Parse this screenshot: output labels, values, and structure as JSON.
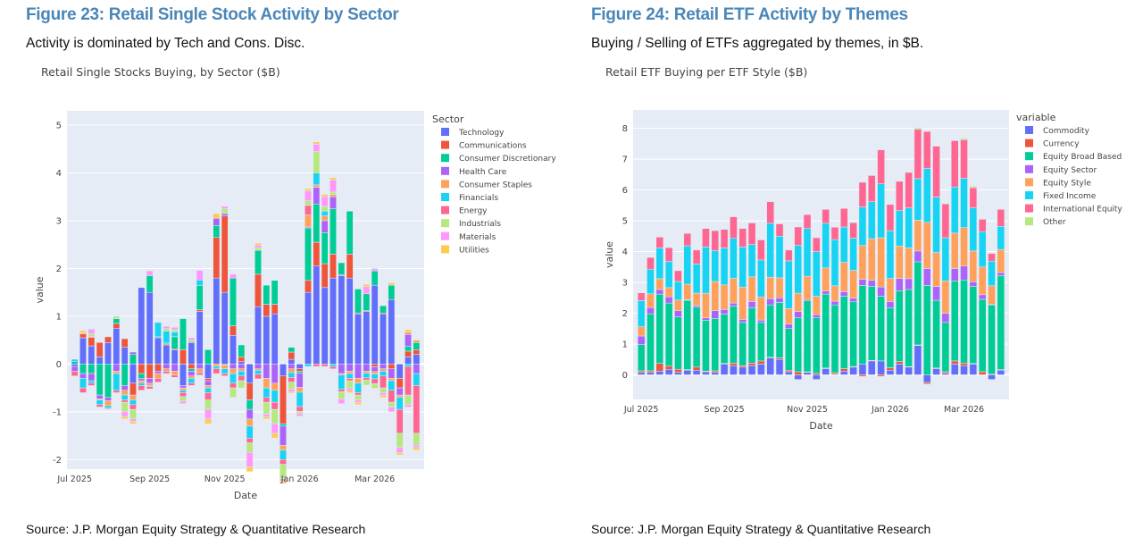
{
  "left": {
    "figure_title": "Figure 23: Retail Single Stock Activity by Sector",
    "subtitle": "Activity is dominated by Tech and Cons. Disc.",
    "source": "Source: J.P. Morgan Equity Strategy & Quantitative Research"
  },
  "right": {
    "figure_title": "Figure 24: Retail ETF Activity by Themes",
    "subtitle": "Buying / Selling of ETFs aggregated by themes, in $B.",
    "source": "Source: J.P. Morgan Equity Strategy & Quantitative Research"
  },
  "chart_data": [
    {
      "type": "bar",
      "stacked": true,
      "title": "Retail Single Stocks Buying, by Sector ($B)",
      "xlabel": "Date",
      "ylabel": "value",
      "ylim": [
        -2.2,
        5.3
      ],
      "yticks": [
        -2,
        -1,
        0,
        1,
        2,
        3,
        4,
        5
      ],
      "xticks": [
        "Jul 2025",
        "Sep 2025",
        "Nov 2025",
        "Jan 2026",
        "Mar 2026"
      ],
      "xtick_index": [
        0,
        9,
        18,
        27,
        36
      ],
      "grid": true,
      "legend_title": "Sector",
      "legend_position": "right",
      "categories_count": 42,
      "series": [
        {
          "name": "Technology",
          "color": "#636efa",
          "values": [
            -0.05,
            0.55,
            0.38,
            0.15,
            0.45,
            0.75,
            0.35,
            -0.4,
            1.6,
            1.5,
            0.55,
            0.4,
            0.3,
            -0.45,
            0.45,
            1.1,
            -0.3,
            1.8,
            1.5,
            0.6,
            0.05,
            -0.4,
            1.2,
            1.0,
            1.05,
            -0.25,
            0.1,
            -0.1,
            1.5,
            2.05,
            1.6,
            1.8,
            1.85,
            1.8,
            1.05,
            1.1,
            1.65,
            1.05,
            1.35,
            -0.3,
            0.15,
            0.2
          ]
        },
        {
          "name": "Communications",
          "color": "#ef553b",
          "values": [
            0.0,
            0.08,
            0.18,
            0.3,
            0.12,
            0.1,
            0.18,
            -0.25,
            -0.2,
            -0.3,
            -0.15,
            0.02,
            0.02,
            0.3,
            -0.1,
            0.04,
            -0.05,
            0.85,
            1.6,
            0.2,
            0.1,
            -0.35,
            0.68,
            0.25,
            0.2,
            -1.0,
            0.15,
            -0.05,
            0.25,
            0.5,
            0.5,
            0.5,
            0.02,
            0.5,
            0.02,
            0.02,
            -0.06,
            0.02,
            -0.1,
            -0.2,
            0.12,
            0.1
          ]
        },
        {
          "name": "Consumer Discretionary",
          "color": "#00cc96",
          "values": [
            0.05,
            -0.2,
            -0.2,
            -0.65,
            -0.7,
            0.1,
            -0.45,
            0.2,
            -0.1,
            0.35,
            0.02,
            0.02,
            0.25,
            0.65,
            -0.05,
            0.5,
            0.3,
            0.25,
            -0.02,
            1.0,
            0.25,
            -0.2,
            0.5,
            0.4,
            0.5,
            -0.05,
            0.1,
            -0.04,
            1.1,
            0.8,
            0.65,
            0.95,
            0.25,
            0.9,
            0.5,
            0.35,
            0.3,
            0.15,
            0.3,
            0.0,
            0.1,
            0.15
          ]
        },
        {
          "name": "Health Care",
          "color": "#ab63fa",
          "values": [
            -0.1,
            -0.1,
            -0.15,
            -0.08,
            -0.07,
            -0.15,
            -0.1,
            0.05,
            -0.05,
            -0.1,
            -0.05,
            -0.1,
            -0.15,
            -0.05,
            -0.1,
            -0.1,
            -0.1,
            0.15,
            0.05,
            -0.1,
            -0.1,
            -0.2,
            -0.1,
            -0.3,
            -0.4,
            -0.4,
            -0.1,
            -0.3,
            0.02,
            0.35,
            0.25,
            0.25,
            -0.2,
            -0.15,
            -0.3,
            -0.15,
            -0.1,
            -0.1,
            -0.2,
            -0.15,
            0.25,
            -0.2
          ]
        },
        {
          "name": "Consumer Staples",
          "color": "#ffa15a",
          "values": [
            0.0,
            0.02,
            0.02,
            -0.02,
            -0.1,
            -0.05,
            -0.1,
            -0.1,
            -0.05,
            -0.05,
            -0.1,
            -0.05,
            -0.08,
            -0.05,
            -0.05,
            -0.08,
            -0.05,
            -0.05,
            -0.08,
            -0.1,
            -0.05,
            -0.15,
            -0.03,
            -0.2,
            -0.15,
            -0.1,
            -0.08,
            -0.1,
            0.25,
            0.05,
            0.1,
            0.05,
            -0.03,
            -0.05,
            -0.1,
            -0.04,
            -0.05,
            -0.05,
            -0.05,
            -0.05,
            0.05,
            0.05
          ]
        },
        {
          "name": "Financials",
          "color": "#19d3f3",
          "values": [
            0.05,
            -0.2,
            -0.05,
            -0.1,
            -0.05,
            -0.35,
            -0.1,
            -0.1,
            -0.05,
            -0.02,
            0.3,
            0.25,
            0.1,
            -0.05,
            -0.1,
            0.12,
            -0.1,
            -0.05,
            -0.1,
            -0.2,
            -0.1,
            -0.25,
            -0.08,
            -0.2,
            -0.25,
            -0.2,
            -0.1,
            -0.3,
            -0.05,
            0.25,
            0.1,
            -0.05,
            -0.3,
            -0.1,
            -0.2,
            -0.1,
            -0.1,
            -0.1,
            -0.2,
            -0.25,
            -0.05,
            -0.25
          ]
        },
        {
          "name": "Energy",
          "color": "#ff6692",
          "values": [
            -0.1,
            -0.1,
            -0.05,
            -0.05,
            -0.02,
            -0.05,
            -0.05,
            -0.1,
            -0.1,
            -0.05,
            -0.08,
            -0.05,
            -0.05,
            -0.08,
            -0.05,
            -0.05,
            -0.15,
            -0.1,
            -0.05,
            -0.1,
            -0.1,
            -0.1,
            -0.1,
            -0.1,
            -0.15,
            -0.1,
            -0.1,
            -0.1,
            0.2,
            -0.05,
            -0.05,
            -0.05,
            -0.05,
            -0.05,
            -0.05,
            -0.05,
            -0.1,
            -0.25,
            -0.25,
            -0.5,
            -0.6,
            -1.0
          ]
        },
        {
          "name": "Industrials",
          "color": "#b6e880",
          "values": [
            0.0,
            0.0,
            0.05,
            0.0,
            0.0,
            0.05,
            -0.2,
            -0.2,
            0.0,
            0.0,
            0.0,
            0.05,
            0.05,
            -0.1,
            0.05,
            0.0,
            -0.2,
            0.0,
            0.1,
            -0.2,
            -0.15,
            -0.2,
            0.05,
            -0.25,
            -0.3,
            -0.3,
            -0.15,
            -0.05,
            0.1,
            0.45,
            0.1,
            0.05,
            -0.15,
            -0.15,
            -0.1,
            -0.1,
            -0.1,
            -0.1,
            -0.1,
            -0.3,
            -0.2,
            -0.25
          ]
        },
        {
          "name": "Materials",
          "color": "#ff97ff",
          "values": [
            0.0,
            0.0,
            0.1,
            0.0,
            0.0,
            0.0,
            -0.1,
            -0.05,
            0.0,
            0.1,
            0.0,
            0.05,
            0.05,
            -0.05,
            0.05,
            0.2,
            -0.2,
            0.0,
            0.05,
            0.08,
            0.0,
            -0.3,
            0.05,
            -0.05,
            -0.2,
            -0.05,
            -0.05,
            -0.05,
            0.2,
            0.15,
            0.2,
            0.25,
            -0.1,
            -0.05,
            -0.05,
            0.15,
            0.05,
            -0.05,
            -0.1,
            -0.1,
            -0.05,
            -0.05
          ]
        },
        {
          "name": "Utilities",
          "color": "#fecb52",
          "values": [
            0.0,
            0.05,
            0.0,
            0.0,
            0.0,
            0.0,
            -0.05,
            -0.05,
            0.0,
            0.0,
            0.0,
            0.0,
            0.0,
            0.0,
            0.0,
            0.0,
            -0.1,
            0.1,
            0.0,
            0.0,
            0.0,
            -0.1,
            0.05,
            -0.05,
            -0.1,
            -0.05,
            -0.03,
            0.0,
            0.05,
            0.05,
            0.05,
            0.05,
            0.0,
            -0.05,
            -0.05,
            0.05,
            0.0,
            -0.05,
            0.05,
            -0.05,
            0.05,
            -0.05
          ]
        }
      ]
    },
    {
      "type": "bar",
      "stacked": true,
      "title": "Retail ETF Buying per ETF Style ($B)",
      "xlabel": "Date",
      "ylabel": "value",
      "ylim": [
        -0.8,
        8.6
      ],
      "yticks": [
        0,
        1,
        2,
        3,
        4,
        5,
        6,
        7,
        8
      ],
      "xticks": [
        "Jul 2025",
        "Sep 2025",
        "Nov 2025",
        "Jan 2026",
        "Mar 2026"
      ],
      "xtick_index": [
        0,
        9,
        18,
        27,
        35
      ],
      "grid": true,
      "legend_title": "variable",
      "legend_position": "right",
      "categories_count": 40,
      "series": [
        {
          "name": "Commodity",
          "color": "#636efa",
          "values": [
            0.08,
            0.08,
            0.12,
            0.18,
            0.08,
            0.15,
            0.15,
            0.1,
            0.08,
            0.35,
            0.3,
            0.25,
            0.3,
            0.35,
            0.55,
            0.5,
            0.1,
            -0.15,
            0.08,
            -0.15,
            0.2,
            0.02,
            0.12,
            0.25,
            0.35,
            0.45,
            0.45,
            0.15,
            0.35,
            0.25,
            0.95,
            -0.25,
            0.2,
            0.05,
            0.35,
            0.3,
            0.35,
            0.0,
            -0.15,
            0.15
          ]
        },
        {
          "name": "Currency",
          "color": "#ef553b",
          "values": [
            0.05,
            0.05,
            0.25,
            0.1,
            0.1,
            0.02,
            0.1,
            0.02,
            0.05,
            0.02,
            0.08,
            0.05,
            0.08,
            0.1,
            0.02,
            0.05,
            0.05,
            0.1,
            0.02,
            0.05,
            0.02,
            0.05,
            0.08,
            0.02,
            -0.05,
            0.02,
            -0.05,
            0.08,
            0.08,
            0.02,
            0.02,
            -0.05,
            0.02,
            0.05,
            0.1,
            0.08,
            0.02,
            0.1,
            0.02,
            0.02
          ]
        },
        {
          "name": "Equity Broad Based",
          "color": "#00cc96",
          "values": [
            0.85,
            1.85,
            2.25,
            2.05,
            1.7,
            2.25,
            1.95,
            1.65,
            1.7,
            1.6,
            1.85,
            1.4,
            1.8,
            1.25,
            1.7,
            1.8,
            1.35,
            1.75,
            2.3,
            1.8,
            2.4,
            2.2,
            2.35,
            2.1,
            2.55,
            2.4,
            2.1,
            1.95,
            2.3,
            2.5,
            2.7,
            2.9,
            2.2,
            1.6,
            2.6,
            2.7,
            2.5,
            2.35,
            2.25,
            3.05
          ]
        },
        {
          "name": "Equity Sector",
          "color": "#ab63fa",
          "values": [
            0.28,
            0.2,
            0.15,
            0.2,
            0.2,
            0.02,
            0.05,
            0.08,
            0.25,
            0.15,
            0.1,
            0.1,
            0.2,
            0.08,
            0.2,
            0.15,
            0.15,
            0.2,
            0.05,
            0.1,
            0.1,
            0.12,
            0.15,
            0.12,
            0.2,
            0.2,
            0.3,
            0.2,
            0.4,
            0.35,
            0.35,
            0.55,
            0.45,
            0.3,
            0.4,
            0.45,
            0.15,
            0.15,
            0.02,
            0.1
          ]
        },
        {
          "name": "Equity Style",
          "color": "#ffa15a",
          "values": [
            0.3,
            0.45,
            0.35,
            0.3,
            0.35,
            0.5,
            0.4,
            0.8,
            0.95,
            0.8,
            0.8,
            1.05,
            0.8,
            0.75,
            0.7,
            0.65,
            0.5,
            0.6,
            0.75,
            0.6,
            0.75,
            0.5,
            0.95,
            0.9,
            1.1,
            1.35,
            1.6,
            0.75,
            1.05,
            1.0,
            1.0,
            1.5,
            1.1,
            1.05,
            1.15,
            1.25,
            1.0,
            0.9,
            0.6,
            0.75
          ]
        },
        {
          "name": "Fixed Income",
          "color": "#19d3f3",
          "values": [
            0.85,
            0.8,
            1.0,
            0.85,
            0.6,
            1.25,
            0.95,
            1.5,
            1.0,
            1.2,
            1.3,
            1.3,
            1.05,
            1.2,
            1.75,
            1.35,
            1.55,
            1.55,
            1.55,
            1.45,
            1.45,
            1.5,
            1.15,
            1.05,
            1.25,
            1.2,
            1.75,
            1.55,
            1.15,
            1.3,
            1.35,
            1.75,
            1.8,
            1.4,
            1.5,
            1.6,
            1.4,
            1.15,
            0.8,
            0.75
          ]
        },
        {
          "name": "International Equity",
          "color": "#ff6692",
          "values": [
            0.25,
            0.38,
            0.35,
            0.45,
            0.35,
            0.4,
            0.45,
            0.6,
            0.65,
            0.6,
            0.7,
            0.6,
            0.7,
            0.65,
            0.7,
            0.4,
            0.35,
            0.6,
            0.45,
            0.45,
            0.45,
            0.4,
            0.6,
            0.5,
            0.8,
            0.85,
            1.1,
            0.85,
            0.95,
            1.15,
            1.6,
            1.2,
            1.65,
            1.1,
            1.5,
            1.25,
            0.65,
            0.4,
            0.25,
            0.55
          ]
        },
        {
          "name": "Other",
          "color": "#b6e880",
          "values": [
            0.0,
            0.0,
            0.0,
            0.0,
            0.0,
            0.0,
            0.0,
            0.0,
            0.0,
            0.0,
            0.0,
            0.0,
            0.0,
            0.0,
            0.0,
            0.0,
            0.0,
            0.0,
            0.0,
            0.0,
            0.0,
            0.0,
            0.0,
            0.0,
            0.0,
            0.0,
            0.0,
            0.0,
            0.0,
            0.0,
            0.05,
            0.0,
            0.0,
            0.0,
            0.0,
            0.05,
            0.05,
            0.0,
            0.0,
            0.0
          ]
        }
      ]
    }
  ]
}
